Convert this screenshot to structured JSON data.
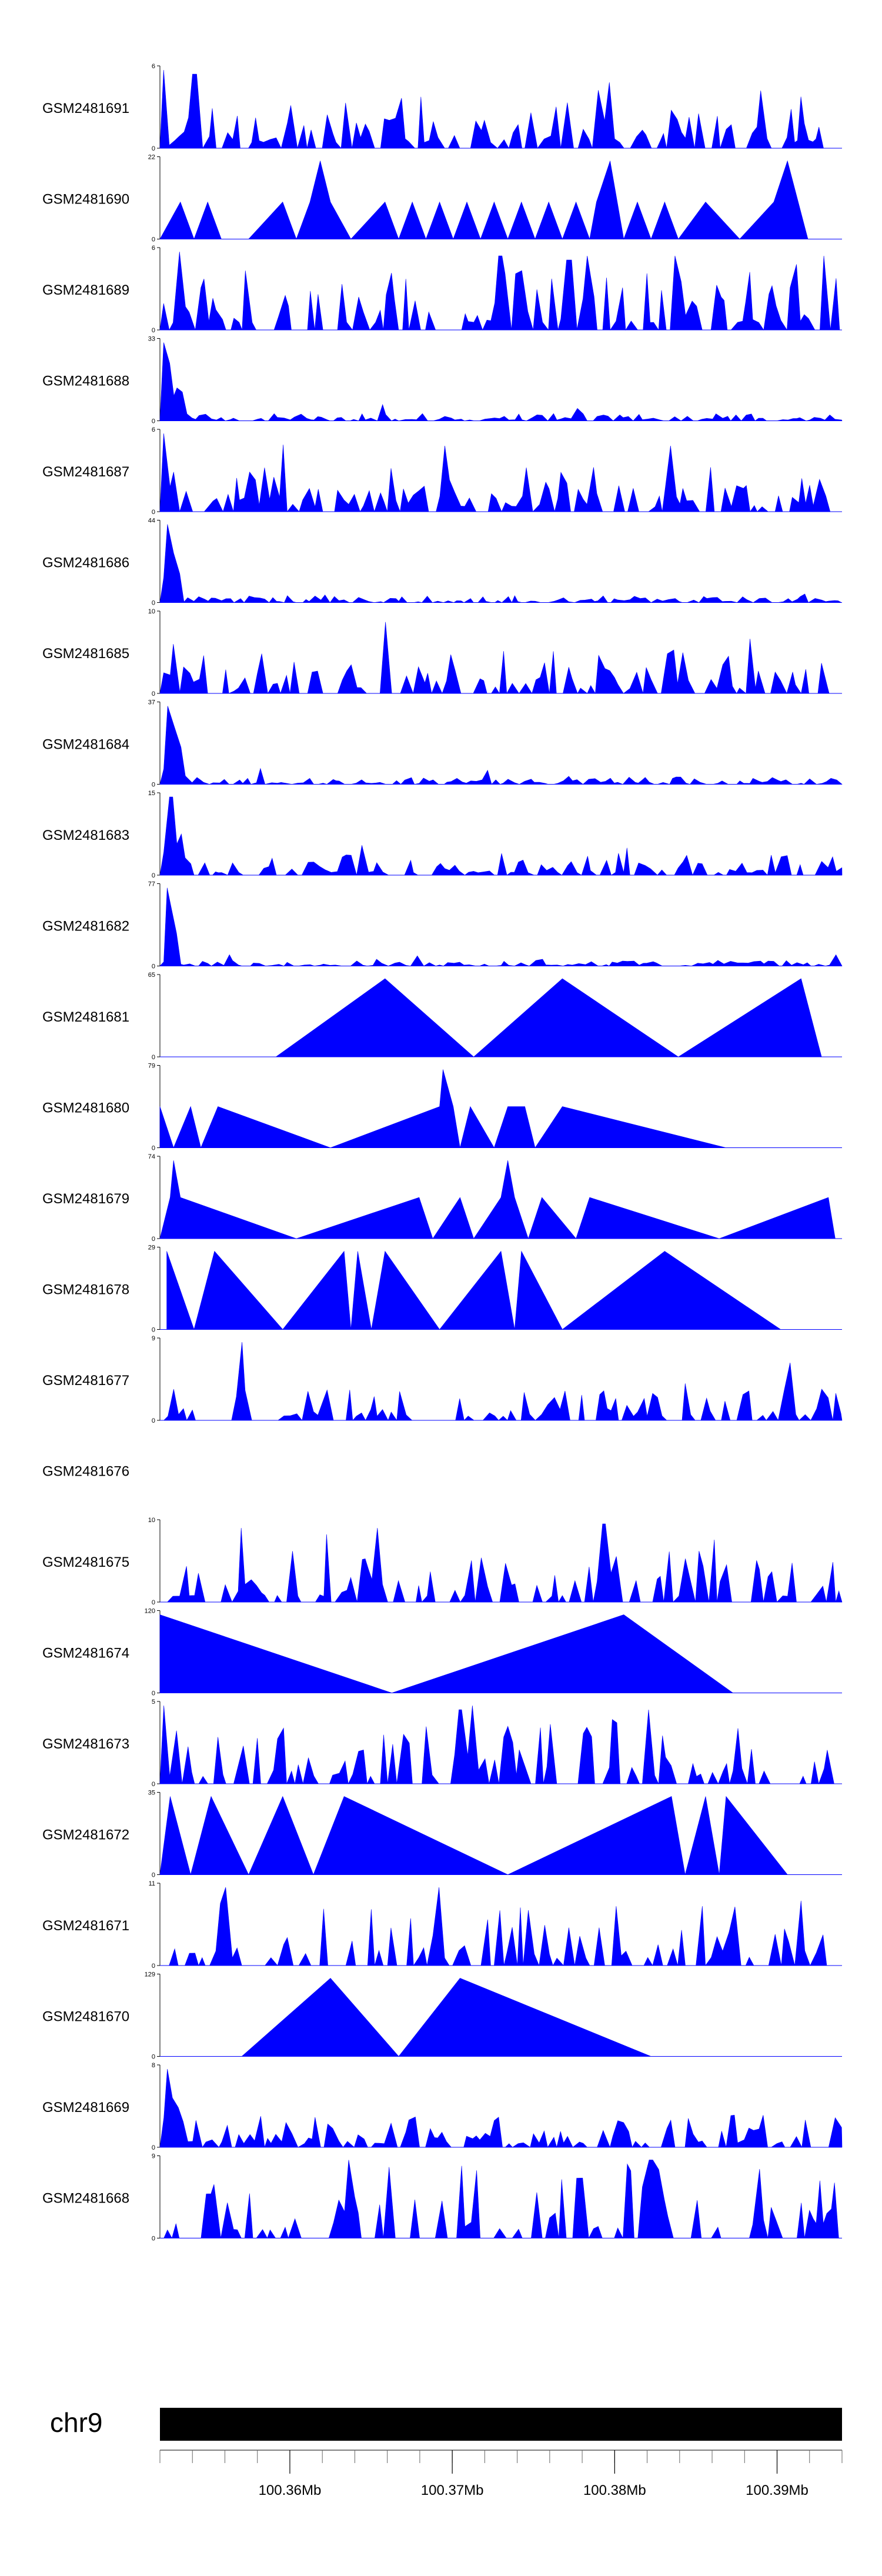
{
  "chart_data": {
    "type": "area",
    "title": "",
    "chromosome": "chr9",
    "fill_color": "#0000ff",
    "x_range": [
      100.352,
      100.394
    ],
    "x_ticks": [
      {
        "value": 100.36,
        "label": "100.36Mb"
      },
      {
        "value": 100.37,
        "label": "100.37Mb"
      },
      {
        "value": 100.38,
        "label": "100.38Mb"
      },
      {
        "value": 100.39,
        "label": "100.39Mb"
      }
    ],
    "tracks": [
      {
        "name": "GSM2481691",
        "ymax": "6",
        "kind": "dense",
        "seed": 11,
        "density": 0.55,
        "level": 0.35,
        "peaks": [
          [
            0.005,
            0.95
          ],
          [
            0.05,
            0.9
          ],
          [
            0.66,
            0.8
          ],
          [
            0.88,
            0.7
          ]
        ]
      },
      {
        "name": "GSM2481690",
        "ymax": "22",
        "kind": "sparse",
        "points": [
          [
            0.0,
            0.0
          ],
          [
            0.03,
            0.45
          ],
          [
            0.05,
            0.0
          ],
          [
            0.07,
            0.45
          ],
          [
            0.09,
            0.0
          ],
          [
            0.13,
            0.0
          ],
          [
            0.18,
            0.45
          ],
          [
            0.2,
            0.0
          ],
          [
            0.22,
            0.45
          ],
          [
            0.235,
            0.95
          ],
          [
            0.25,
            0.45
          ],
          [
            0.28,
            0.0
          ],
          [
            0.33,
            0.45
          ],
          [
            0.35,
            0.0
          ],
          [
            0.37,
            0.45
          ],
          [
            0.39,
            0.0
          ],
          [
            0.41,
            0.45
          ],
          [
            0.43,
            0.0
          ],
          [
            0.45,
            0.45
          ],
          [
            0.47,
            0.0
          ],
          [
            0.49,
            0.45
          ],
          [
            0.51,
            0.0
          ],
          [
            0.53,
            0.45
          ],
          [
            0.55,
            0.0
          ],
          [
            0.57,
            0.45
          ],
          [
            0.59,
            0.0
          ],
          [
            0.61,
            0.45
          ],
          [
            0.63,
            0.0
          ],
          [
            0.64,
            0.45
          ],
          [
            0.66,
            0.95
          ],
          [
            0.68,
            0.0
          ],
          [
            0.7,
            0.45
          ],
          [
            0.72,
            0.0
          ],
          [
            0.74,
            0.45
          ],
          [
            0.76,
            0.0
          ],
          [
            0.8,
            0.45
          ],
          [
            0.85,
            0.0
          ],
          [
            0.9,
            0.45
          ],
          [
            0.92,
            0.95
          ],
          [
            0.95,
            0.0
          ]
        ]
      },
      {
        "name": "GSM2481689",
        "ymax": "6",
        "kind": "dense",
        "seed": 23,
        "density": 0.6,
        "level": 0.45,
        "peaks": [
          [
            0.03,
            0.95
          ],
          [
            0.5,
            0.9
          ],
          [
            0.6,
            0.85
          ]
        ]
      },
      {
        "name": "GSM2481688",
        "ymax": "33",
        "kind": "dense",
        "seed": 31,
        "density": 0.7,
        "level": 0.05,
        "peaks": [
          [
            0.008,
            0.95
          ],
          [
            0.015,
            0.7
          ],
          [
            0.025,
            0.4
          ],
          [
            0.03,
            0.35
          ]
        ]
      },
      {
        "name": "GSM2481687",
        "ymax": "6",
        "kind": "dense",
        "seed": 41,
        "density": 0.6,
        "level": 0.3,
        "peaks": [
          [
            0.005,
            0.95
          ],
          [
            0.42,
            0.8
          ],
          [
            0.75,
            0.8
          ]
        ]
      },
      {
        "name": "GSM2481686",
        "ymax": "44",
        "kind": "dense",
        "seed": 53,
        "density": 0.7,
        "level": 0.05,
        "peaks": [
          [
            0.01,
            0.95
          ],
          [
            0.02,
            0.6
          ],
          [
            0.03,
            0.35
          ]
        ]
      },
      {
        "name": "GSM2481685",
        "ymax": "10",
        "kind": "dense",
        "seed": 61,
        "density": 0.6,
        "level": 0.3,
        "peaks": [
          [
            0.01,
            0.95
          ],
          [
            0.02,
            0.6
          ],
          [
            0.12,
            0.5
          ]
        ]
      },
      {
        "name": "GSM2481684",
        "ymax": "37",
        "kind": "dense",
        "seed": 71,
        "density": 0.7,
        "level": 0.05,
        "peaks": [
          [
            0.01,
            0.95
          ],
          [
            0.02,
            0.7
          ],
          [
            0.03,
            0.45
          ]
        ]
      },
      {
        "name": "GSM2481683",
        "ymax": "15",
        "kind": "dense",
        "seed": 83,
        "density": 0.6,
        "level": 0.15,
        "peaks": [
          [
            0.015,
            0.95
          ],
          [
            0.02,
            0.8
          ],
          [
            0.03,
            0.5
          ]
        ]
      },
      {
        "name": "GSM2481682",
        "ymax": "77",
        "kind": "dense",
        "seed": 97,
        "density": 0.7,
        "level": 0.04,
        "peaks": [
          [
            0.01,
            0.95
          ],
          [
            0.015,
            0.75
          ],
          [
            0.025,
            0.4
          ]
        ]
      },
      {
        "name": "GSM2481681",
        "ymax": "65",
        "kind": "sparse",
        "points": [
          [
            0.17,
            0.0
          ],
          [
            0.33,
            0.95
          ],
          [
            0.46,
            0.0
          ],
          [
            0.59,
            0.95
          ],
          [
            0.76,
            0.0
          ],
          [
            0.94,
            0.95
          ],
          [
            0.97,
            0.0
          ]
        ]
      },
      {
        "name": "GSM2481680",
        "ymax": "79",
        "kind": "sparse",
        "points": [
          [
            0.0,
            0.5
          ],
          [
            0.02,
            0.0
          ],
          [
            0.045,
            0.5
          ],
          [
            0.06,
            0.0
          ],
          [
            0.085,
            0.5
          ],
          [
            0.25,
            0.0
          ],
          [
            0.41,
            0.5
          ],
          [
            0.415,
            0.95
          ],
          [
            0.43,
            0.5
          ],
          [
            0.44,
            0.0
          ],
          [
            0.455,
            0.5
          ],
          [
            0.49,
            0.0
          ],
          [
            0.51,
            0.5
          ],
          [
            0.535,
            0.5
          ],
          [
            0.55,
            0.0
          ],
          [
            0.59,
            0.5
          ],
          [
            0.83,
            0.0
          ]
        ]
      },
      {
        "name": "GSM2481679",
        "ymax": "74",
        "kind": "sparse",
        "points": [
          [
            0.0,
            0.0
          ],
          [
            0.015,
            0.5
          ],
          [
            0.02,
            0.95
          ],
          [
            0.03,
            0.5
          ],
          [
            0.2,
            0.0
          ],
          [
            0.38,
            0.5
          ],
          [
            0.4,
            0.0
          ],
          [
            0.44,
            0.5
          ],
          [
            0.46,
            0.0
          ],
          [
            0.5,
            0.5
          ],
          [
            0.51,
            0.95
          ],
          [
            0.52,
            0.5
          ],
          [
            0.54,
            0.0
          ],
          [
            0.56,
            0.5
          ],
          [
            0.61,
            0.0
          ],
          [
            0.63,
            0.5
          ],
          [
            0.82,
            0.0
          ],
          [
            0.98,
            0.5
          ],
          [
            0.99,
            0.0
          ]
        ]
      },
      {
        "name": "GSM2481678",
        "ymax": "29",
        "kind": "sparse",
        "points": [
          [
            0.01,
            0.95
          ],
          [
            0.05,
            0.0
          ],
          [
            0.08,
            0.95
          ],
          [
            0.18,
            0.0
          ],
          [
            0.27,
            0.95
          ],
          [
            0.28,
            0.0
          ],
          [
            0.29,
            0.95
          ],
          [
            0.31,
            0.0
          ],
          [
            0.33,
            0.95
          ],
          [
            0.41,
            0.0
          ],
          [
            0.5,
            0.95
          ],
          [
            0.52,
            0.0
          ],
          [
            0.53,
            0.95
          ],
          [
            0.59,
            0.0
          ],
          [
            0.74,
            0.95
          ],
          [
            0.91,
            0.0
          ]
        ]
      },
      {
        "name": "GSM2481677",
        "ymax": "9",
        "kind": "dense",
        "seed": 103,
        "density": 0.55,
        "level": 0.25,
        "peaks": [
          [
            0.12,
            0.95
          ],
          [
            0.92,
            0.7
          ]
        ]
      },
      {
        "name": "GSM2481676",
        "ymax": "",
        "kind": "empty"
      },
      {
        "name": "GSM2481675",
        "ymax": "10",
        "kind": "dense",
        "seed": 113,
        "density": 0.5,
        "level": 0.35,
        "peaks": [
          [
            0.12,
            0.9
          ],
          [
            0.32,
            0.9
          ],
          [
            0.65,
            0.95
          ]
        ]
      },
      {
        "name": "GSM2481674",
        "ymax": "120",
        "kind": "sparse",
        "points": [
          [
            0.0,
            0.0
          ],
          [
            0.0,
            0.95
          ],
          [
            0.34,
            0.0
          ],
          [
            0.68,
            0.95
          ],
          [
            0.84,
            0.0
          ]
        ]
      },
      {
        "name": "GSM2481673",
        "ymax": "5",
        "kind": "dense",
        "seed": 127,
        "density": 0.5,
        "level": 0.45,
        "peaks": [
          [
            0.005,
            0.95
          ],
          [
            0.44,
            0.9
          ],
          [
            0.46,
            0.95
          ]
        ]
      },
      {
        "name": "GSM2481672",
        "ymax": "35",
        "kind": "sparse",
        "points": [
          [
            0.0,
            0.0
          ],
          [
            0.015,
            0.95
          ],
          [
            0.045,
            0.0
          ],
          [
            0.075,
            0.95
          ],
          [
            0.13,
            0.0
          ],
          [
            0.18,
            0.95
          ],
          [
            0.225,
            0.0
          ],
          [
            0.27,
            0.95
          ],
          [
            0.51,
            0.0
          ],
          [
            0.75,
            0.95
          ],
          [
            0.77,
            0.0
          ],
          [
            0.8,
            0.95
          ],
          [
            0.82,
            0.0
          ],
          [
            0.83,
            0.95
          ],
          [
            0.92,
            0.0
          ]
        ]
      },
      {
        "name": "GSM2481671",
        "ymax": "11",
        "kind": "dense",
        "seed": 137,
        "density": 0.45,
        "level": 0.45,
        "peaks": [
          [
            0.1,
            0.95
          ],
          [
            0.41,
            0.95
          ]
        ]
      },
      {
        "name": "GSM2481670",
        "ymax": "129",
        "kind": "sparse",
        "points": [
          [
            0.12,
            0.0
          ],
          [
            0.25,
            0.95
          ],
          [
            0.35,
            0.0
          ],
          [
            0.44,
            0.95
          ],
          [
            0.72,
            0.0
          ]
        ]
      },
      {
        "name": "GSM2481669",
        "ymax": "8",
        "kind": "dense",
        "seed": 149,
        "density": 0.6,
        "level": 0.22,
        "peaks": [
          [
            0.01,
            0.95
          ],
          [
            0.02,
            0.6
          ]
        ]
      },
      {
        "name": "GSM2481668",
        "ymax": "9",
        "kind": "dense",
        "seed": 151,
        "density": 0.5,
        "level": 0.5,
        "peaks": [
          [
            0.28,
            0.95
          ],
          [
            0.72,
            0.95
          ]
        ]
      }
    ]
  }
}
